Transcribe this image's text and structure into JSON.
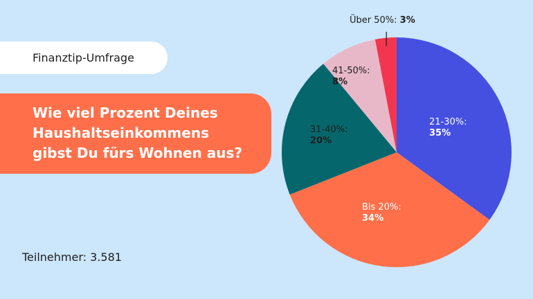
{
  "source_label": "Finanztip-Umfrage",
  "question": {
    "lines": [
      "Wie viel Prozent Deines",
      "Haushaltseinkommens",
      "gibst Du fürs Wohnen aus?"
    ]
  },
  "participants": "Teilnehmer: 3.581",
  "colors": {
    "background": "#cce6fb",
    "accent": "#ff6f4a"
  },
  "chart_data": {
    "type": "pie",
    "title": "Wie viel Prozent Deines Haushaltseinkommens gibst Du fürs Wohnen aus?",
    "legend": "none",
    "slices": [
      {
        "label": "21-30%:",
        "value_text": "35%",
        "value": 35,
        "color": "#4550e0",
        "text_color": "#ffffff"
      },
      {
        "label": "Bis 20%:",
        "value_text": "34%",
        "value": 34,
        "color": "#ff6f4a",
        "text_color": "#ffffff"
      },
      {
        "label": "31-40%:",
        "value_text": "20%",
        "value": 20,
        "color": "#05676c",
        "text_color": "#1e1e1e"
      },
      {
        "label": "41-50%:",
        "value_text": "8%",
        "value": 8,
        "color": "#e8b8c9",
        "text_color": "#1e1e1e"
      },
      {
        "label": "Über 50%:",
        "value_text": "3%",
        "value": 3,
        "color": "#f2364f",
        "text_color": "#1e1e1e"
      }
    ]
  }
}
